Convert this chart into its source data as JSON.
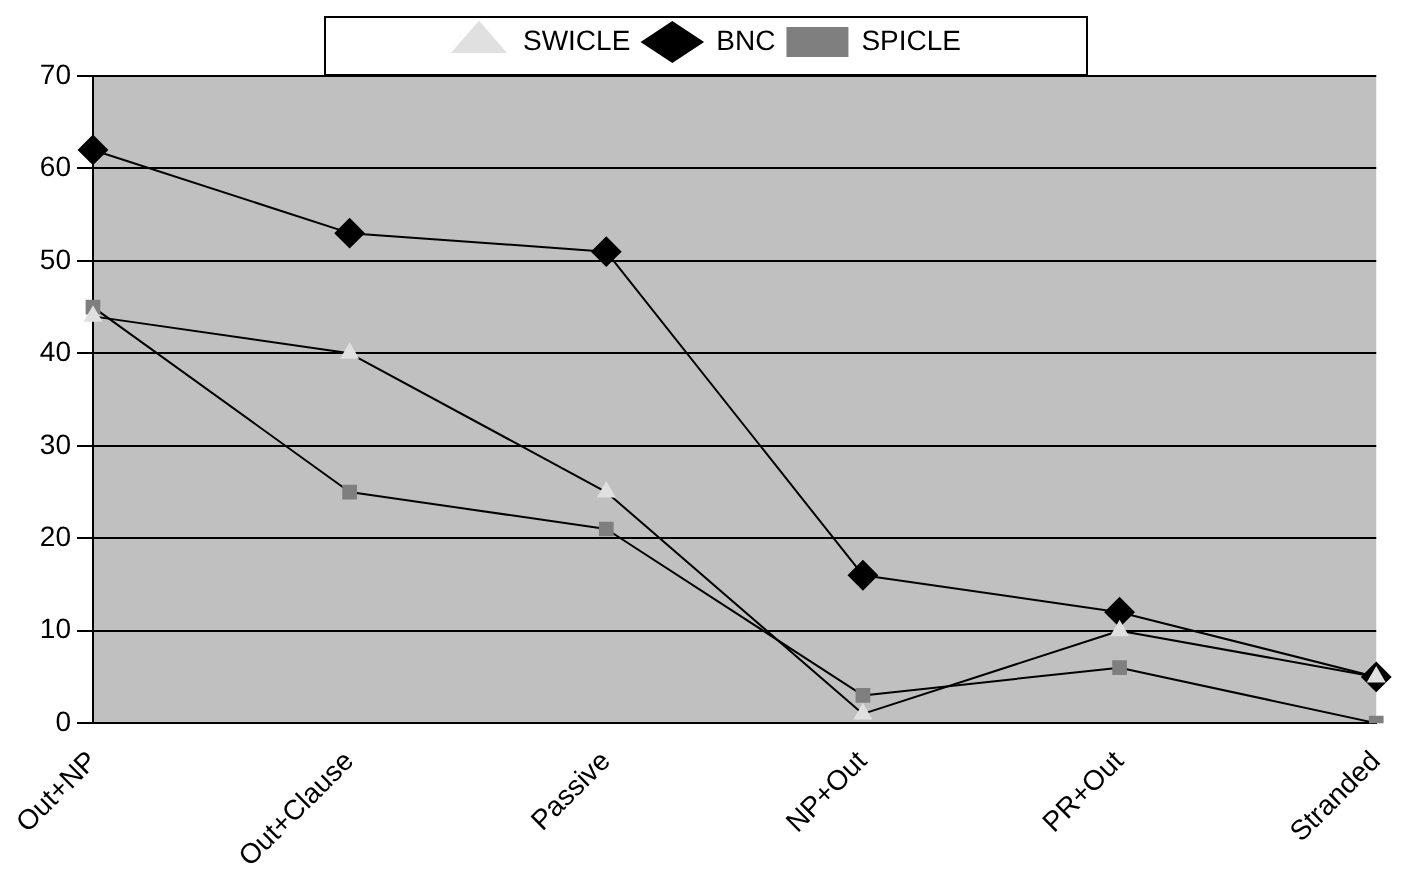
{
  "chart_data": {
    "type": "line",
    "categories": [
      "Out+NP",
      "Out+Clause",
      "Passive",
      "NP+Out",
      "PR+Out",
      "Stranded"
    ],
    "series": [
      {
        "name": "SWICLE",
        "color": "#e0e0e0",
        "marker": "triangle",
        "values": [
          44,
          40,
          25,
          1,
          10,
          5
        ]
      },
      {
        "name": "BNC",
        "color": "#000000",
        "marker": "diamond",
        "values": [
          62,
          53,
          51,
          16,
          12,
          5
        ]
      },
      {
        "name": "SPICLE",
        "color": "#7f7f7f",
        "marker": "square",
        "values": [
          45,
          25,
          21,
          3,
          6,
          0
        ]
      }
    ],
    "ylim": [
      0,
      70
    ],
    "yticks": [
      0,
      10,
      20,
      30,
      40,
      50,
      60,
      70
    ],
    "grid": "y",
    "legend": "top",
    "line_style": "solid"
  }
}
